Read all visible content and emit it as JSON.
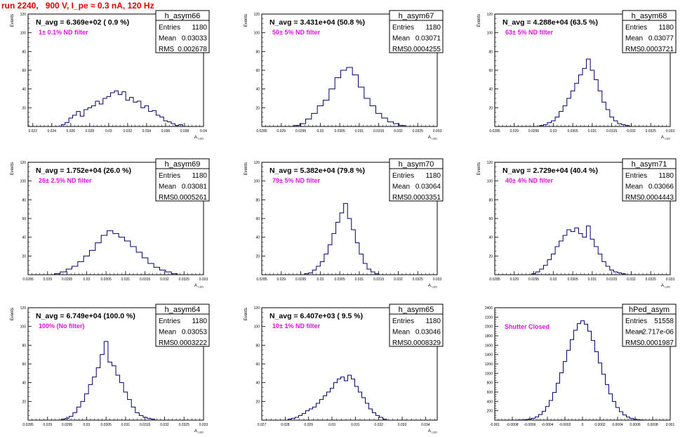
{
  "run_title": "run 2240,   900 V, I_pe ≈ 0.3 nA, 120 Hz",
  "stat_labels": {
    "entries": "Entries",
    "mean": "Mean",
    "rms": "RMS"
  },
  "colors": {
    "hist_line": "#00006e",
    "annotation": "#e010e0",
    "title": "#e00000",
    "axis": "#000000"
  },
  "chart_data": [
    {
      "type": "histogram",
      "name": "h_asym66",
      "navg": "N_avg = 6.369e+02 ( 0.9 %)",
      "annotation": "1± 0.1% ND filter",
      "stats": {
        "entries": "1180",
        "mean": "0.03033",
        "rms": "0.002678"
      },
      "xlabel": "A_LED",
      "ylabel": "Events",
      "xlim": [
        0.0215,
        0.04
      ],
      "ylim": [
        0,
        120
      ],
      "xticks": [
        0.022,
        0.024,
        0.026,
        0.028,
        0.03,
        0.032,
        0.034,
        0.036,
        0.038,
        0.04
      ],
      "xtick_labels": [
        "0.022",
        "0.024",
        "0.026",
        "0.028",
        "0.03",
        "0.032",
        "0.034",
        "0.036",
        "0.038",
        "0.04"
      ],
      "yticks": [
        20,
        40,
        60,
        80,
        100,
        120
      ],
      "ytick_labels": [
        "20",
        "40",
        "60",
        "80",
        "100",
        "120"
      ],
      "bins": [
        0.0252,
        0.0256,
        0.026,
        0.0264,
        0.0268,
        0.0272,
        0.0276,
        0.028,
        0.0284,
        0.0288,
        0.0292,
        0.0296,
        0.03,
        0.0304,
        0.0308,
        0.0312,
        0.0316,
        0.032,
        0.0324,
        0.0328,
        0.0332,
        0.0336,
        0.034,
        0.0344,
        0.0348,
        0.0352,
        0.0356,
        0.036,
        0.0364,
        0.0368,
        0.0372,
        0.0376
      ],
      "values": [
        2,
        4,
        9,
        12,
        16,
        11,
        18,
        20,
        22,
        27,
        24,
        30,
        32,
        36,
        38,
        34,
        37,
        28,
        31,
        26,
        27,
        20,
        22,
        16,
        17,
        12,
        10,
        6,
        5,
        3,
        1,
        2
      ]
    },
    {
      "type": "histogram",
      "name": "h_asym67",
      "navg": "N_avg = 3.431e+04 (50.8 %)",
      "annotation": "50± 5% ND filter",
      "stats": {
        "entries": "1180",
        "mean": "0.03071",
        "rms": "0.0004255"
      },
      "xlabel": "A_LED",
      "ylabel": "Events",
      "xlim": [
        0.0285,
        0.033
      ],
      "ylim": [
        0,
        120
      ],
      "xticks": [
        0.0285,
        0.029,
        0.0295,
        0.03,
        0.0305,
        0.031,
        0.0315,
        0.032,
        0.0325,
        0.033
      ],
      "xtick_labels": [
        "0.0285",
        "0.029",
        "0.0295",
        "0.03",
        "0.0305",
        "0.031",
        "0.0315",
        "0.032",
        "0.0325",
        "0.033"
      ],
      "yticks": [
        20,
        40,
        60,
        80,
        100,
        120
      ],
      "ytick_labels": [
        "20",
        "40",
        "60",
        "80",
        "100",
        "120"
      ],
      "bins": [
        0.0294,
        0.02955,
        0.0297,
        0.02985,
        0.03,
        0.03015,
        0.0303,
        0.03045,
        0.0306,
        0.03075,
        0.0309,
        0.03105,
        0.0312,
        0.03135,
        0.0315,
        0.03165,
        0.0318,
        0.03195,
        0.0321
      ],
      "values": [
        1,
        3,
        8,
        14,
        22,
        28,
        40,
        52,
        60,
        63,
        55,
        42,
        30,
        22,
        14,
        9,
        5,
        3,
        1
      ]
    },
    {
      "type": "histogram",
      "name": "h_asym68",
      "navg": "N_avg = 4.288e+04 (63.5 %)",
      "annotation": "63± 5% ND filter",
      "stats": {
        "entries": "1180",
        "mean": "0.03077",
        "rms": "0.0003721"
      },
      "xlabel": "A_LED",
      "ylabel": "Events",
      "xlim": [
        0.0285,
        0.033
      ],
      "ylim": [
        0,
        120
      ],
      "xticks": [
        0.0285,
        0.029,
        0.0295,
        0.03,
        0.0305,
        0.031,
        0.0315,
        0.032,
        0.0325,
        0.033
      ],
      "xtick_labels": [
        "0.0285",
        "0.029",
        "0.0295",
        "0.03",
        "0.0305",
        "0.031",
        "0.0315",
        "0.032",
        "0.0325",
        "0.033"
      ],
      "yticks": [
        20,
        40,
        60,
        80,
        100,
        120
      ],
      "ytick_labels": [
        "20",
        "40",
        "60",
        "80",
        "100",
        "120"
      ],
      "bins": [
        0.0297,
        0.0298,
        0.0299,
        0.03,
        0.0301,
        0.0302,
        0.0303,
        0.0304,
        0.0305,
        0.0306,
        0.0307,
        0.0308,
        0.0309,
        0.031,
        0.0311,
        0.0312,
        0.0313,
        0.0314,
        0.0315,
        0.0316,
        0.0317,
        0.0318,
        0.0319
      ],
      "values": [
        1,
        2,
        4,
        6,
        10,
        16,
        22,
        30,
        38,
        46,
        55,
        62,
        72,
        60,
        50,
        38,
        26,
        18,
        10,
        6,
        3,
        2,
        1
      ]
    },
    {
      "type": "histogram",
      "name": "h_asym69",
      "navg": "N_avg = 1.752e+04 (26.0 %)",
      "annotation": "26± 2.5% ND filter",
      "stats": {
        "entries": "1180",
        "mean": "0.03081",
        "rms": "0.0005261"
      },
      "xlabel": "A_LED",
      "ylabel": "Events",
      "xlim": [
        0.0285,
        0.033
      ],
      "ylim": [
        0,
        120
      ],
      "xticks": [
        0.0285,
        0.029,
        0.0295,
        0.03,
        0.0305,
        0.031,
        0.0315,
        0.032,
        0.0325,
        0.033
      ],
      "xtick_labels": [
        "0.0285",
        "0.029",
        "0.0295",
        "0.03",
        "0.0305",
        "0.031",
        "0.0315",
        "0.032",
        "0.0325",
        "0.033"
      ],
      "yticks": [
        20,
        40,
        60,
        80,
        100,
        120
      ],
      "ytick_labels": [
        "20",
        "40",
        "60",
        "80",
        "100",
        "120"
      ],
      "bins": [
        0.02925,
        0.0294,
        0.02955,
        0.0297,
        0.02985,
        0.03,
        0.03015,
        0.0303,
        0.03045,
        0.0306,
        0.03075,
        0.0309,
        0.03105,
        0.0312,
        0.03135,
        0.0315,
        0.03165,
        0.0318,
        0.03195,
        0.0321,
        0.03225
      ],
      "values": [
        1,
        3,
        6,
        9,
        14,
        20,
        26,
        34,
        42,
        47,
        44,
        40,
        36,
        30,
        24,
        18,
        12,
        8,
        5,
        3,
        1
      ]
    },
    {
      "type": "histogram",
      "name": "h_asym70",
      "navg": "N_avg = 5.382e+04 (79.8 %)",
      "annotation": "79± 5% ND filter",
      "stats": {
        "entries": "1180",
        "mean": "0.03064",
        "rms": "0.0003351"
      },
      "xlabel": "A_LED",
      "ylabel": "Events",
      "xlim": [
        0.0285,
        0.033
      ],
      "ylim": [
        0,
        120
      ],
      "xticks": [
        0.0285,
        0.029,
        0.0295,
        0.03,
        0.0305,
        0.031,
        0.0315,
        0.032,
        0.0325,
        0.033
      ],
      "xtick_labels": [
        "0.0285",
        "0.029",
        "0.0295",
        "0.03",
        "0.0305",
        "0.031",
        "0.0315",
        "0.032",
        "0.0325",
        "0.033"
      ],
      "yticks": [
        20,
        40,
        60,
        80,
        100,
        120
      ],
      "ytick_labels": [
        "20",
        "40",
        "60",
        "80",
        "100",
        "120"
      ],
      "bins": [
        0.02965,
        0.02975,
        0.02985,
        0.02995,
        0.03005,
        0.03015,
        0.03025,
        0.03035,
        0.03045,
        0.03055,
        0.03065,
        0.03075,
        0.03085,
        0.03095,
        0.03105,
        0.03115,
        0.03125,
        0.03135,
        0.03145
      ],
      "values": [
        1,
        2,
        5,
        9,
        14,
        22,
        32,
        44,
        56,
        66,
        76,
        60,
        48,
        34,
        22,
        12,
        6,
        3,
        1
      ]
    },
    {
      "type": "histogram",
      "name": "h_asym71",
      "navg": "N_avg = 2.729e+04 (40.4 %)",
      "annotation": "40± 4% ND filter",
      "stats": {
        "entries": "1180",
        "mean": "0.03066",
        "rms": "0.0004443"
      },
      "xlabel": "A_LED",
      "ylabel": "Events",
      "xlim": [
        0.0285,
        0.033
      ],
      "ylim": [
        0,
        120
      ],
      "xticks": [
        0.0285,
        0.029,
        0.0295,
        0.03,
        0.0305,
        0.031,
        0.0315,
        0.032,
        0.0325,
        0.033
      ],
      "xtick_labels": [
        "0.0285",
        "0.029",
        "0.0295",
        "0.03",
        "0.0305",
        "0.031",
        "0.0315",
        "0.032",
        "0.0325",
        "0.033"
      ],
      "yticks": [
        20,
        40,
        60,
        80,
        100,
        120
      ],
      "ytick_labels": [
        "20",
        "40",
        "60",
        "80",
        "100",
        "120"
      ],
      "bins": [
        0.0295,
        0.0296,
        0.0297,
        0.0298,
        0.0299,
        0.03,
        0.0301,
        0.0302,
        0.0303,
        0.0304,
        0.0305,
        0.0306,
        0.0307,
        0.0308,
        0.0309,
        0.031,
        0.0311,
        0.0312,
        0.0313,
        0.0314,
        0.0315,
        0.0316,
        0.0317,
        0.0318
      ],
      "values": [
        1,
        3,
        6,
        10,
        16,
        22,
        30,
        36,
        42,
        48,
        46,
        50,
        44,
        40,
        52,
        38,
        30,
        22,
        14,
        9,
        5,
        3,
        2,
        1
      ]
    },
    {
      "type": "histogram",
      "name": "h_asym64",
      "navg": "N_avg = 6.749e+04 (100.0 %)",
      "annotation": "100% (No filter)",
      "stats": {
        "entries": "1180",
        "mean": "0.03053",
        "rms": "0.0003222"
      },
      "xlabel": "A_LED",
      "ylabel": "Events",
      "xlim": [
        0.0285,
        0.033
      ],
      "ylim": [
        0,
        120
      ],
      "xticks": [
        0.0285,
        0.029,
        0.0295,
        0.03,
        0.0305,
        0.031,
        0.0315,
        0.032,
        0.0325,
        0.033
      ],
      "xtick_labels": [
        "0.0285",
        "0.029",
        "0.0295",
        "0.03",
        "0.0305",
        "0.031",
        "0.0315",
        "0.032",
        "0.0325",
        "0.033"
      ],
      "yticks": [
        20,
        40,
        60,
        80,
        100,
        120
      ],
      "ytick_labels": [
        "20",
        "40",
        "60",
        "80",
        "100",
        "120"
      ],
      "bins": [
        0.0294,
        0.0295,
        0.0296,
        0.0297,
        0.0298,
        0.0299,
        0.03,
        0.0301,
        0.0302,
        0.0303,
        0.0304,
        0.0305,
        0.0306,
        0.0307,
        0.0308,
        0.0309,
        0.031,
        0.0311,
        0.0312,
        0.0313,
        0.0314,
        0.0315,
        0.0316,
        0.0317
      ],
      "values": [
        1,
        2,
        4,
        8,
        14,
        20,
        28,
        38,
        46,
        56,
        70,
        84,
        62,
        58,
        48,
        40,
        30,
        22,
        14,
        8,
        5,
        3,
        2,
        1
      ]
    },
    {
      "type": "histogram",
      "name": "h_asym65",
      "navg": "N_avg = 6.407e+03 ( 9.5 %)",
      "annotation": "10± 1% ND filter",
      "stats": {
        "entries": "1180",
        "mean": "0.03046",
        "rms": "0.0008329"
      },
      "xlabel": "A_LED",
      "ylabel": "Events",
      "xlim": [
        0.027,
        0.0345
      ],
      "ylim": [
        0,
        120
      ],
      "xticks": [
        0.027,
        0.028,
        0.029,
        0.03,
        0.031,
        0.032,
        0.033,
        0.034
      ],
      "xtick_labels": [
        "0.027",
        "0.028",
        "0.029",
        "0.03",
        "0.031",
        "0.032",
        "0.033",
        "0.034"
      ],
      "yticks": [
        20,
        40,
        60,
        80,
        100,
        120
      ],
      "ytick_labels": [
        "20",
        "40",
        "60",
        "80",
        "100",
        "120"
      ],
      "bins": [
        0.0282,
        0.02835,
        0.0285,
        0.02865,
        0.0288,
        0.02895,
        0.0291,
        0.02925,
        0.0294,
        0.02955,
        0.0297,
        0.02985,
        0.03,
        0.03015,
        0.0303,
        0.03045,
        0.0306,
        0.03075,
        0.0309,
        0.03105,
        0.0312,
        0.03135,
        0.0315,
        0.03165,
        0.0318,
        0.03195,
        0.0321,
        0.03225
      ],
      "values": [
        1,
        2,
        3,
        5,
        7,
        10,
        12,
        14,
        18,
        22,
        26,
        30,
        34,
        40,
        44,
        46,
        42,
        48,
        44,
        36,
        30,
        24,
        18,
        12,
        8,
        5,
        3,
        1
      ]
    },
    {
      "type": "histogram",
      "name": "hPed_asym",
      "navg": "",
      "annotation": "Shutter Closed",
      "stats": {
        "entries": "51558",
        "mean": "-2.717e-06",
        "rms": "0.0001987"
      },
      "xlabel": "",
      "ylabel": "",
      "xlim": [
        -0.001,
        0.001
      ],
      "ylim": [
        0,
        2400
      ],
      "xticks": [
        -0.001,
        -0.0008,
        -0.0006,
        -0.0004,
        -0.0002,
        0,
        0.0002,
        0.0004,
        0.0006,
        0.0008,
        0.001
      ],
      "xtick_labels": [
        "-0.001",
        "-0.0008",
        "-0.0006",
        "-0.0004",
        "-0.0002",
        "0",
        "0.0002",
        "0.0004",
        "0.0006",
        "0.0008",
        "0.001"
      ],
      "yticks": [
        200,
        400,
        600,
        800,
        1000,
        1200,
        1400,
        1600,
        1800,
        2000,
        2200,
        2400
      ],
      "ytick_labels": [
        "200",
        "400",
        "600",
        "800",
        "1000",
        "1200",
        "1400",
        "1600",
        "1800",
        "2000",
        "2200",
        "2400"
      ],
      "bins": [
        -0.00072,
        -0.00068,
        -0.00064,
        -0.0006,
        -0.00056,
        -0.00052,
        -0.00048,
        -0.00044,
        -0.0004,
        -0.00036,
        -0.00032,
        -0.00028,
        -0.00024,
        -0.0002,
        -0.00016,
        -0.00012,
        -8e-05,
        -4e-05,
        0,
        4e-05,
        8e-05,
        0.00012,
        0.00016,
        0.0002,
        0.00024,
        0.00028,
        0.00032,
        0.00036,
        0.0004,
        0.00044,
        0.00048,
        0.00052,
        0.00056,
        0.0006,
        0.00064,
        0.00068
      ],
      "values": [
        3,
        6,
        12,
        22,
        40,
        70,
        120,
        190,
        290,
        420,
        590,
        790,
        1010,
        1250,
        1490,
        1720,
        1920,
        2060,
        2120,
        2050,
        1900,
        1700,
        1460,
        1220,
        980,
        760,
        560,
        400,
        270,
        180,
        110,
        65,
        35,
        18,
        8,
        3
      ]
    }
  ]
}
